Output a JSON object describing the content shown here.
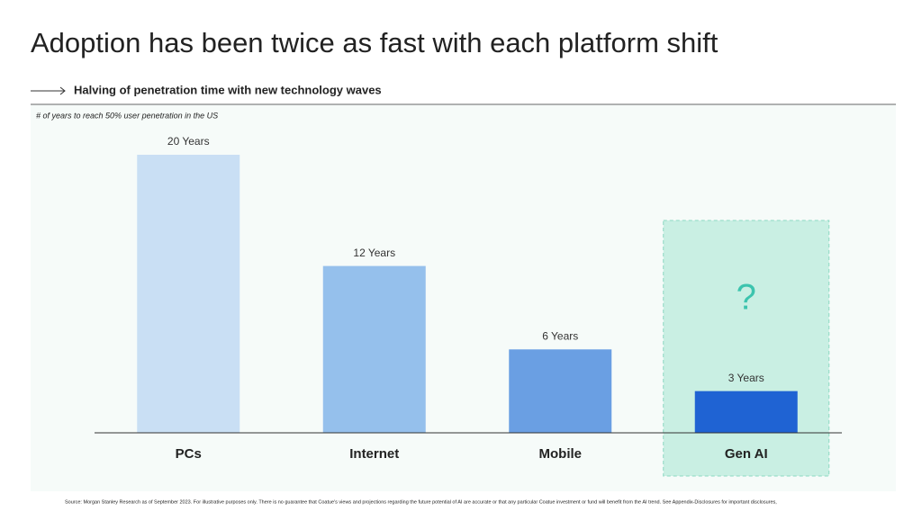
{
  "chart_data": {
    "type": "bar",
    "title": "Adoption has been twice as fast with each platform shift",
    "subtitle": "Halving of penetration time with new technology waves",
    "y_label": "# of years to reach 50% user penetration in the US",
    "categories": [
      "PCs",
      "Internet",
      "Mobile",
      "Gen AI"
    ],
    "values": [
      20,
      12,
      6,
      3
    ],
    "value_labels": [
      "20 Years",
      "12 Years",
      "6 Years",
      "3 Years"
    ],
    "colors": [
      "#c9dff4",
      "#95c0ec",
      "#6a9fe3",
      "#1f63d3"
    ],
    "annotation": "?",
    "source": "Source: Morgan Stanley Research as of September 2023. For illustrative purposes only. There is no guarantee that Coatue's views and projections regarding the future potential of AI are accurate or that any particular Coatue investment or fund will benefit from the AI trend. See Appendix-Disclosures for important disclosures,"
  }
}
